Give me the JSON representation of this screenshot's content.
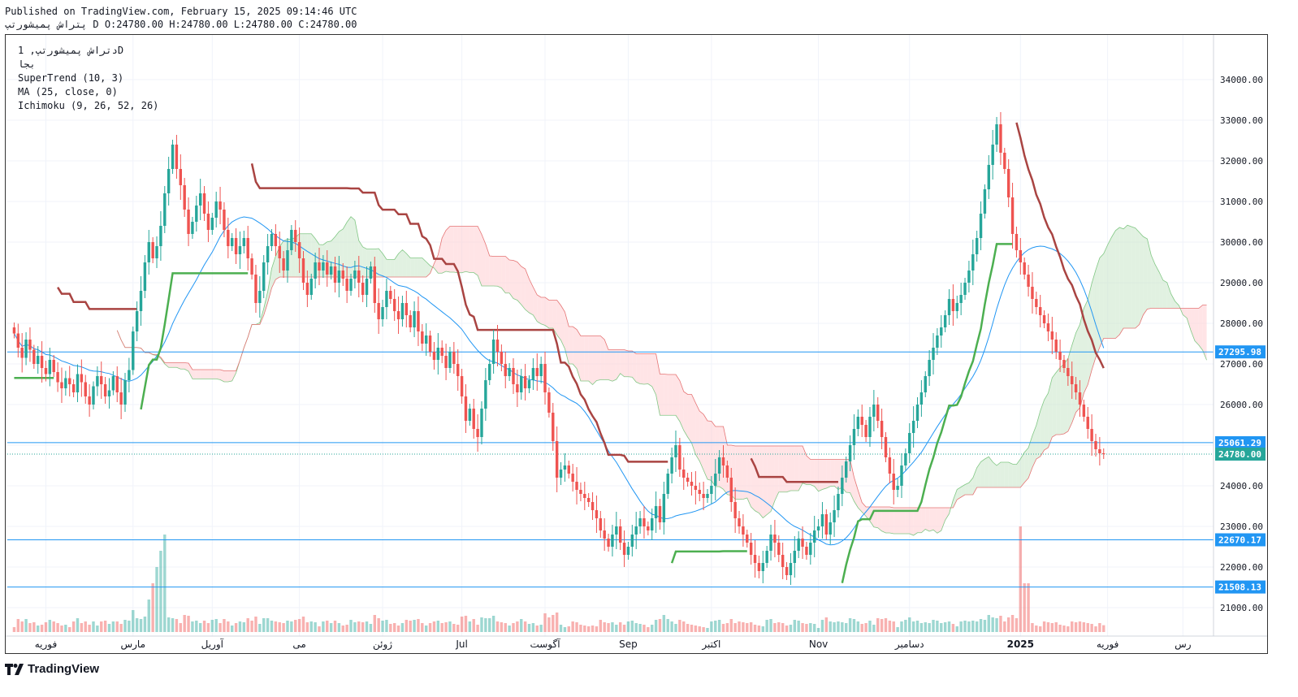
{
  "header": {
    "published": "Published on TradingView.com, February 15, 2025 09:14:46 UTC",
    "ohlc": "پتراش پمیشورتپ D O:24780.00 H:24780.00 L:24780.00 C:24780.00"
  },
  "legend": {
    "symbol": "دتراش پمیشورتپ, 1D",
    "exchange": "بجا",
    "supertrend": "SuperTrend (10, 3)",
    "ma": "MA (25, close, 0)",
    "ichimoku": "Ichimoku (9, 26, 52, 26)"
  },
  "branding": {
    "logo_text": "TradingView"
  },
  "colors": {
    "up": "#26a69a",
    "down": "#ef5350",
    "supertrend_up": "#4caf50",
    "supertrend_down": "#a94442",
    "ma": "#2196f3",
    "hline": "#2196f3",
    "last_price": "#26a69a",
    "cloud_bull": "#c8e6c9",
    "cloud_bear": "#ffcdd2"
  },
  "chart_data": {
    "type": "candlestick",
    "y_axis": {
      "ylim": [
        20400,
        34800
      ],
      "ticks": [
        21000,
        22000,
        23000,
        24000,
        25000,
        26000,
        27000,
        28000,
        29000,
        30000,
        31000,
        32000,
        33000,
        34000
      ],
      "position": "right"
    },
    "x_axis": {
      "tick_labels": [
        {
          "label": "فوریه",
          "bar": 8
        },
        {
          "label": "مارس",
          "bar": 30
        },
        {
          "label": "آوریل",
          "bar": 50
        },
        {
          "label": "می",
          "bar": 72
        },
        {
          "label": "ژوئن",
          "bar": 93
        },
        {
          "label": "Jul",
          "bar": 113
        },
        {
          "label": "آگوست",
          "bar": 134
        },
        {
          "label": "Sep",
          "bar": 155
        },
        {
          "label": "اکتبر",
          "bar": 176
        },
        {
          "label": "Nov",
          "bar": 203
        },
        {
          "label": "دسامبر",
          "bar": 226
        },
        {
          "label": "2025",
          "bar": 254
        },
        {
          "label": "فوریه",
          "bar": 276
        },
        {
          "label": "رس",
          "bar": 295
        }
      ]
    },
    "horizontal_lines": [
      {
        "value": 27295.98,
        "label": "27295.98"
      },
      {
        "value": 25061.29,
        "label": "25061.29"
      },
      {
        "value": 22670.17,
        "label": "22670.17"
      },
      {
        "value": 21508.13,
        "label": "21508.13"
      }
    ],
    "last_price": {
      "value": 24780.0,
      "label": "24780.00"
    },
    "closes": [
      27750,
      27400,
      27150,
      27600,
      27350,
      27000,
      27200,
      26900,
      26750,
      27100,
      26800,
      26550,
      26400,
      26650,
      26500,
      26300,
      26750,
      26550,
      26200,
      26000,
      26450,
      26700,
      26500,
      26200,
      26350,
      26700,
      26300,
      26000,
      26600,
      26850,
      27800,
      28300,
      28800,
      29500,
      30000,
      29600,
      29900,
      30400,
      31200,
      31800,
      32400,
      31800,
      31400,
      30800,
      30200,
      30500,
      30900,
      31200,
      30700,
      30300,
      30600,
      31000,
      30800,
      30300,
      29900,
      30100,
      29700,
      29900,
      30100,
      29600,
      29200,
      28500,
      28800,
      29500,
      29900,
      30200,
      29900,
      29600,
      29300,
      29800,
      30300,
      30000,
      29600,
      29000,
      28700,
      29100,
      29500,
      29300,
      29500,
      29200,
      29400,
      29000,
      29300,
      29100,
      28800,
      29100,
      29300,
      29000,
      28700,
      29100,
      29400,
      28500,
      28100,
      28400,
      28800,
      28600,
      28300,
      28100,
      28500,
      28200,
      27900,
      28300,
      27800,
      27500,
      27700,
      27300,
      27100,
      27400,
      27200,
      26900,
      27300,
      27000,
      26700,
      26200,
      25600,
      25900,
      25400,
      25200,
      25900,
      26600,
      27000,
      27600,
      27300,
      27000,
      26700,
      26900,
      26500,
      26300,
      26700,
      26400,
      26600,
      26900,
      26700,
      27000,
      26300,
      25800,
      25100,
      24200,
      24400,
      24500,
      24300,
      24100,
      23900,
      23800,
      23700,
      23600,
      23400,
      23200,
      22900,
      22700,
      22500,
      22800,
      23000,
      22600,
      22300,
      22500,
      22800,
      23000,
      23200,
      23000,
      22900,
      23200,
      23500,
      23100,
      23800,
      24300,
      24700,
      25000,
      24400,
      24200,
      24100,
      24000,
      23900,
      23800,
      23700,
      23800,
      24000,
      24300,
      24700,
      24500,
      24200,
      23600,
      23200,
      23000,
      22800,
      22600,
      22300,
      22100,
      21900,
      22100,
      22400,
      22800,
      22600,
      22300,
      22000,
      21800,
      22100,
      22400,
      22700,
      22500,
      22300,
      22600,
      22900,
      23000,
      23300,
      22800,
      23100,
      23400,
      23800,
      24200,
      24600,
      25000,
      25400,
      25700,
      25500,
      25200,
      25700,
      26000,
      25600,
      25200,
      24700,
      24300,
      23900,
      24000,
      24500,
      24800,
      25300,
      25600,
      26000,
      26300,
      26700,
      27100,
      27400,
      27700,
      27900,
      28200,
      28600,
      28300,
      28500,
      28700,
      29000,
      29300,
      29700,
      30100,
      30700,
      31300,
      31900,
      32400,
      32900,
      32200,
      31800,
      31100,
      30200,
      29800,
      29500,
      29200,
      28900,
      28600,
      28400,
      28200,
      28000,
      27800,
      27600,
      27300,
      27100,
      26900,
      26700,
      26500,
      26300,
      26000,
      25700,
      25400,
      25100,
      24900,
      24800,
      24780
    ],
    "supertrend_note": "trend flips: up (green) Mar, down (red) Apr-Aug, up Sep, down Oct-Nov, up Dec-Jan, down Feb"
  }
}
